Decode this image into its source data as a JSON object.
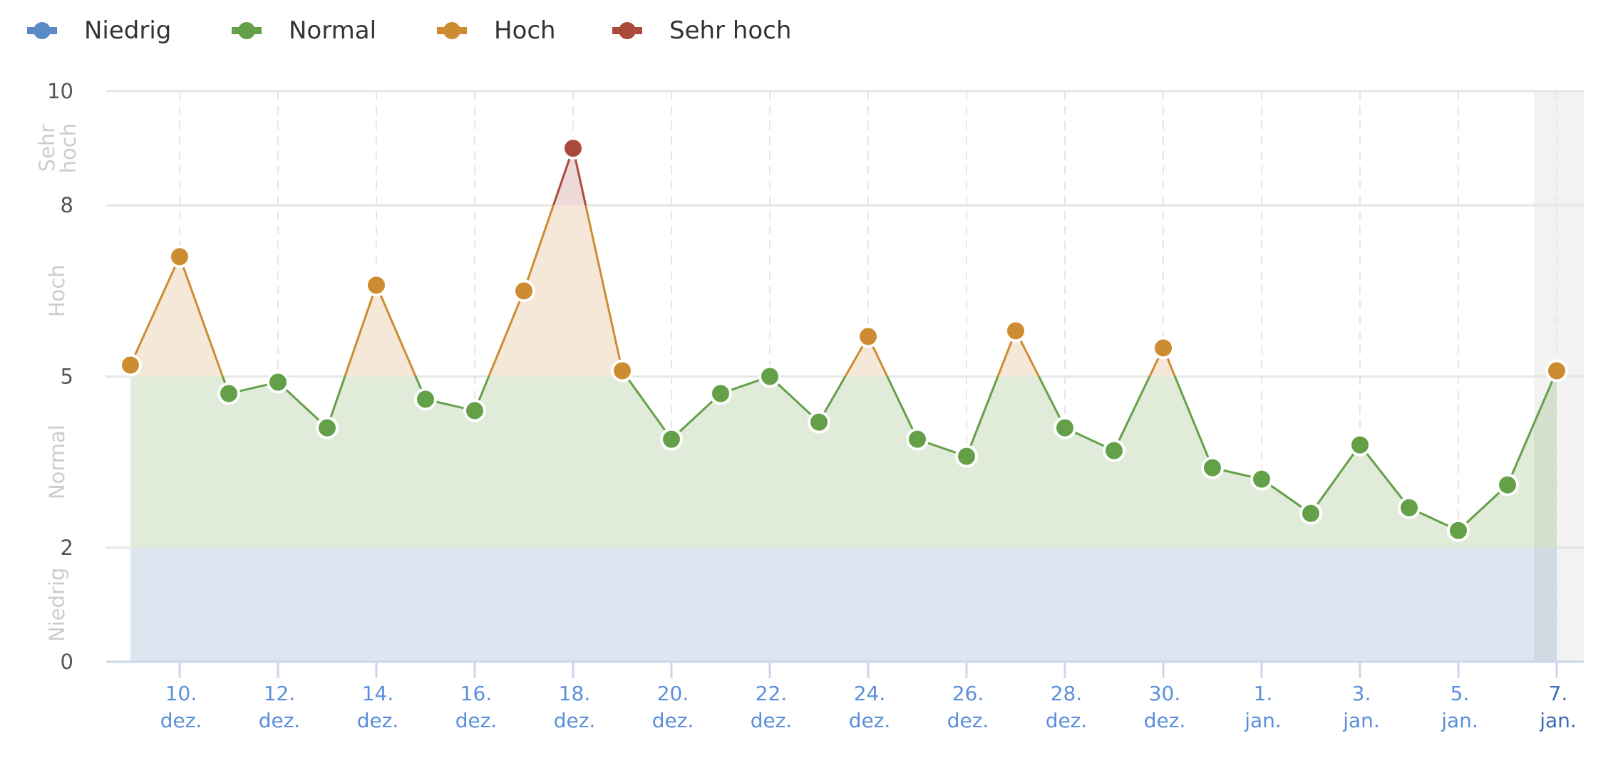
{
  "legend": [
    {
      "label": "Niedrig",
      "color": "#5b8bc7"
    },
    {
      "label": "Normal",
      "color": "#64a047"
    },
    {
      "label": "Hoch",
      "color": "#cd8c31"
    },
    {
      "label": "Sehr hoch",
      "color": "#ab4a3a"
    }
  ],
  "colors": {
    "niedrig_fill": "#dde6f0",
    "normal_fill": "#e0ebd9",
    "hoch_fill": "#f5e8d9",
    "sehr_hoch_fill": "#eed9d9",
    "grid": "#e6e6e6",
    "axis": "#ccd6eb",
    "current_band": "#f2f2f2",
    "xtick_label": "#5b8fdb",
    "xtick_current": "#3a6bb5"
  },
  "chart_data": {
    "type": "area",
    "title": "",
    "xlabel": "",
    "ylabel": "",
    "ylim": [
      0,
      10
    ],
    "yticks": [
      0,
      2,
      5,
      8,
      10
    ],
    "grid": true,
    "legend_position": "top-left",
    "zones": [
      {
        "name": "Niedrig",
        "from": 0,
        "to": 2
      },
      {
        "name": "Normal",
        "from": 2,
        "to": 5
      },
      {
        "name": "Hoch",
        "from": 5,
        "to": 8
      },
      {
        "name": "Sehr hoch",
        "from": 8,
        "to": 10
      }
    ],
    "x": [
      "9. dez.",
      "10. dez.",
      "11. dez.",
      "12. dez.",
      "13. dez.",
      "14. dez.",
      "15. dez.",
      "16. dez.",
      "17. dez.",
      "18. dez.",
      "19. dez.",
      "20. dez.",
      "21. dez.",
      "22. dez.",
      "23. dez.",
      "24. dez.",
      "25. dez.",
      "26. dez.",
      "27. dez.",
      "28. dez.",
      "29. dez.",
      "30. dez.",
      "31. dez.",
      "1. jan.",
      "2. jan.",
      "3. jan.",
      "4. jan.",
      "5. jan.",
      "6. jan.",
      "7. jan."
    ],
    "values": [
      5.2,
      7.1,
      4.7,
      4.9,
      4.1,
      6.6,
      4.6,
      4.4,
      6.5,
      9.0,
      5.1,
      3.9,
      4.7,
      5.0,
      4.2,
      5.7,
      3.9,
      3.6,
      5.8,
      4.1,
      3.7,
      5.5,
      3.4,
      3.2,
      2.6,
      3.8,
      2.7,
      2.3,
      3.1,
      5.1
    ],
    "xtick_labels": [
      {
        "index": 1,
        "day": "10.",
        "month": "dez."
      },
      {
        "index": 3,
        "day": "12.",
        "month": "dez."
      },
      {
        "index": 5,
        "day": "14.",
        "month": "dez."
      },
      {
        "index": 7,
        "day": "16.",
        "month": "dez."
      },
      {
        "index": 9,
        "day": "18.",
        "month": "dez."
      },
      {
        "index": 11,
        "day": "20.",
        "month": "dez."
      },
      {
        "index": 13,
        "day": "22.",
        "month": "dez."
      },
      {
        "index": 15,
        "day": "24.",
        "month": "dez."
      },
      {
        "index": 17,
        "day": "26.",
        "month": "dez."
      },
      {
        "index": 19,
        "day": "28.",
        "month": "dez."
      },
      {
        "index": 21,
        "day": "30.",
        "month": "dez."
      },
      {
        "index": 23,
        "day": "1.",
        "month": "jan."
      },
      {
        "index": 25,
        "day": "3.",
        "month": "jan."
      },
      {
        "index": 27,
        "day": "5.",
        "month": "jan."
      },
      {
        "index": 29,
        "day": "7.",
        "month": "jan.",
        "current": true
      }
    ],
    "highlighted_index": 29
  }
}
